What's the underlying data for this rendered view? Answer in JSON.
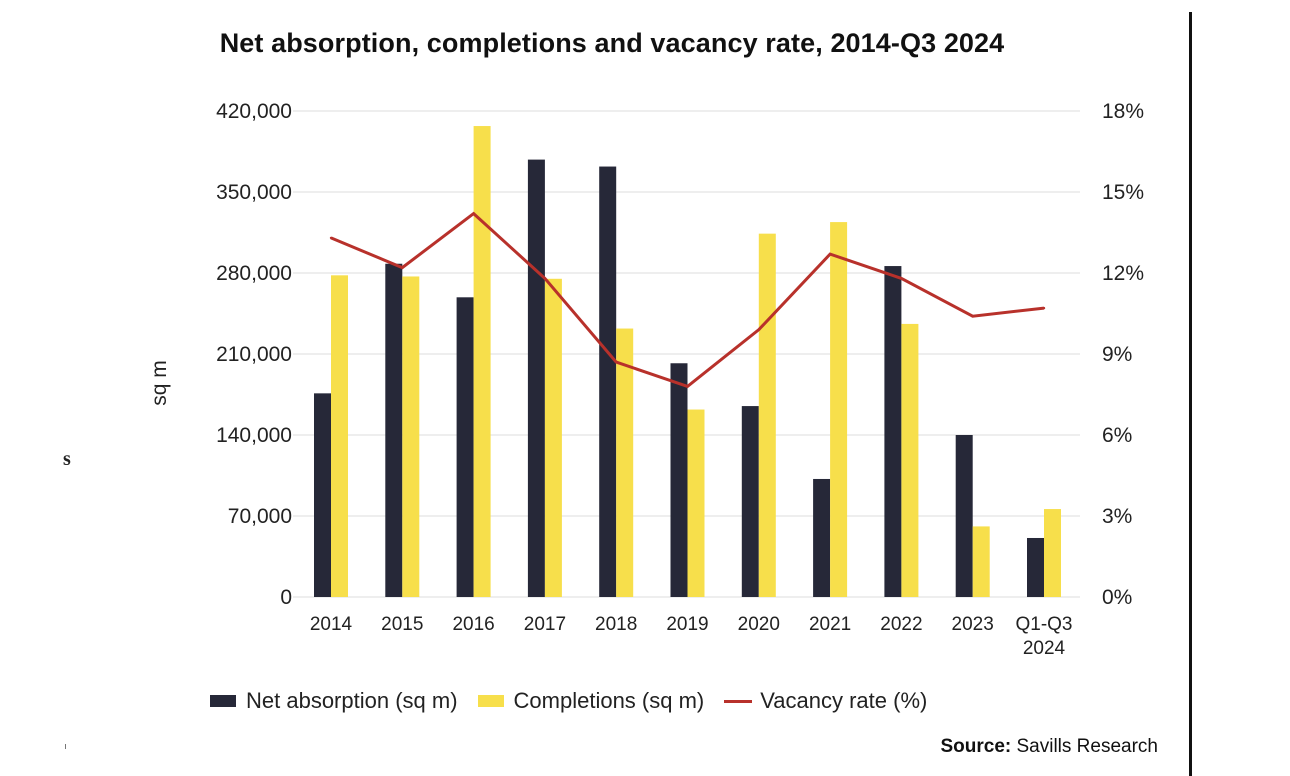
{
  "chart_data": {
    "type": "bar",
    "title": "Net absorption, completions and vacancy rate, 2014-Q3 2024",
    "xlabel": "",
    "ylabel": "sq m",
    "y2label": "",
    "categories": [
      "2014",
      "2015",
      "2016",
      "2017",
      "2018",
      "2019",
      "2020",
      "2021",
      "2022",
      "2023",
      "Q1-Q3 2024"
    ],
    "category_lines": [
      [
        "2014"
      ],
      [
        "2015"
      ],
      [
        "2016"
      ],
      [
        "2017"
      ],
      [
        "2018"
      ],
      [
        "2019"
      ],
      [
        "2020"
      ],
      [
        "2021"
      ],
      [
        "2022"
      ],
      [
        "2023"
      ],
      [
        "Q1-Q3",
        "2024"
      ]
    ],
    "series": [
      {
        "name": "Net absorption (sq m)",
        "type": "bar",
        "axis": "left",
        "color": "#262838",
        "values": [
          176000,
          288000,
          259000,
          378000,
          372000,
          202000,
          165000,
          102000,
          286000,
          140000,
          51000
        ]
      },
      {
        "name": "Completions (sq m)",
        "type": "bar",
        "axis": "left",
        "color": "#F7DF4B",
        "values": [
          278000,
          277000,
          407000,
          275000,
          232000,
          162000,
          314000,
          324000,
          236000,
          61000,
          76000
        ]
      },
      {
        "name": "Vacancy rate (%)",
        "type": "line",
        "axis": "right",
        "color": "#B8312B",
        "values": [
          13.3,
          12.2,
          14.2,
          11.8,
          8.7,
          7.8,
          9.9,
          12.7,
          11.8,
          10.4,
          10.7
        ]
      }
    ],
    "ylim": [
      0,
      420000
    ],
    "y2lim": [
      0,
      18
    ],
    "yticks": [
      "0",
      "70,000",
      "140,000",
      "210,000",
      "280,000",
      "350,000",
      "420,000"
    ],
    "ytick_values": [
      0,
      70000,
      140000,
      210000,
      280000,
      350000,
      420000
    ],
    "y2ticks": [
      "0%",
      "3%",
      "6%",
      "9%",
      "12%",
      "15%",
      "18%"
    ],
    "y2tick_values": [
      0,
      3,
      6,
      9,
      12,
      15,
      18
    ],
    "grid": true,
    "legend_position": "bottom"
  },
  "legend": {
    "net_absorption": "Net absorption (sq m)",
    "completions": "Completions (sq m)",
    "vacancy": "Vacancy rate (%)"
  },
  "source": {
    "label": "Source:",
    "text": "Savills Research"
  },
  "artifacts": {
    "stray_letter": "s"
  },
  "colors": {
    "net_absorption": "#262838",
    "completions": "#F7DF4B",
    "vacancy": "#B8312B",
    "grid": "#EEEEEE"
  }
}
